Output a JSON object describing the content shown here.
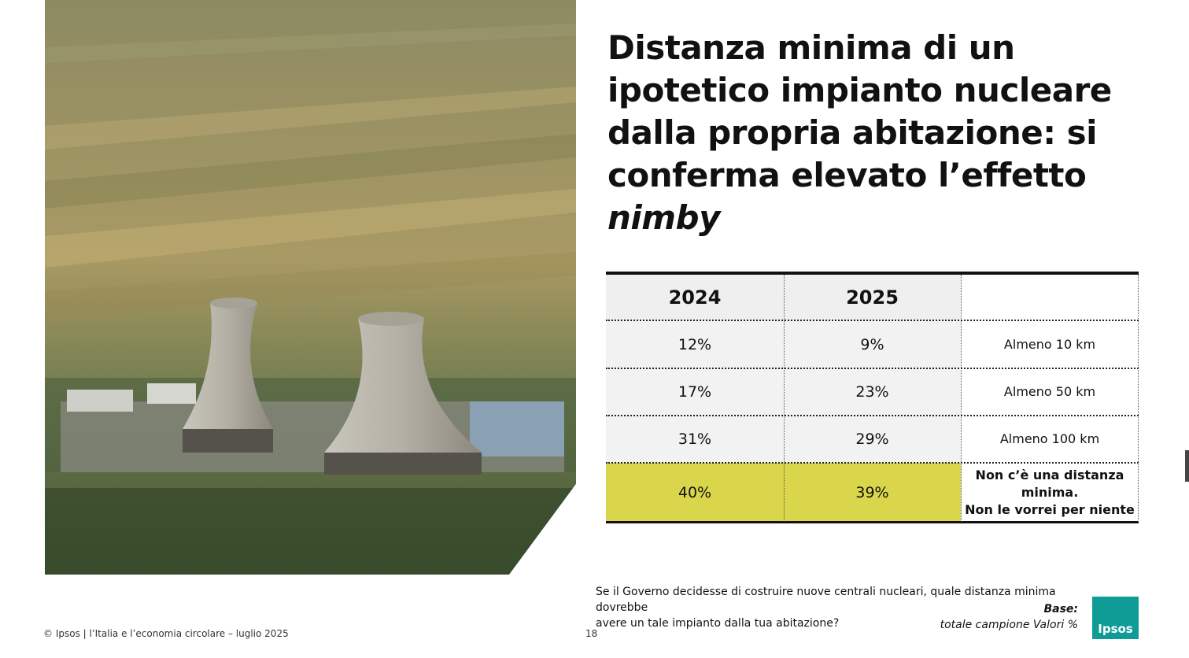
{
  "title": {
    "lines": [
      "Distanza minima di un",
      "ipotetico impianto nucleare",
      "dalla propria abitazione: si",
      "conferma elevato l’effetto"
    ],
    "italic": "nimby"
  },
  "table": {
    "header": [
      "2024",
      "2025"
    ],
    "rows": [
      {
        "values": [
          "12%",
          "9%"
        ],
        "label": [
          "Almeno 10 km"
        ]
      },
      {
        "values": [
          "17%",
          "23%"
        ],
        "label": [
          "Almeno 50 km"
        ]
      },
      {
        "values": [
          "31%",
          "29%"
        ],
        "label": [
          "Almeno 100 km"
        ]
      },
      {
        "values": [
          "40%",
          "39%"
        ],
        "label": [
          "Non c’è una distanza",
          "minima.",
          "Non le vorrei per niente"
        ]
      }
    ]
  },
  "question": {
    "lines": [
      "Se il Governo decidesse di costruire nuove centrali nucleari, quale distanza minima dovrebbe",
      "avere un tale impianto dalla tua abitazione?"
    ]
  },
  "base": {
    "label": "Base:",
    "text": "totale campione Valori %"
  },
  "footer": {
    "text": "© Ipsos | l’Italia e l’economia circolare – luglio 2025",
    "page": "18"
  },
  "logo": "Ipsos"
}
